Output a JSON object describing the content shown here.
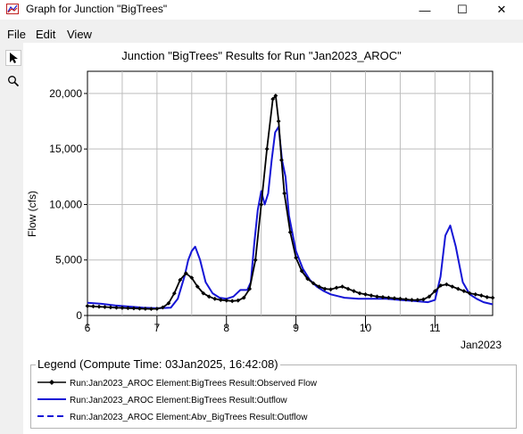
{
  "window": {
    "title": "Graph for Junction \"BigTrees\"",
    "minimize_glyph": "—",
    "maximize_glyph": "☐",
    "close_glyph": "✕"
  },
  "menu": {
    "items": [
      "File",
      "Edit",
      "View"
    ]
  },
  "tools": [
    {
      "name": "pointer-tool",
      "icon": "arrow-pointer-icon",
      "glyph": "➤"
    },
    {
      "name": "zoom-tool",
      "icon": "magnifier-icon",
      "glyph": "🔍"
    }
  ],
  "chart_data": {
    "type": "line",
    "title": "Junction \"BigTrees\" Results for Run \"Jan2023_AROC\"",
    "xlabel": "Jan2023",
    "ylabel": "Flow (cfs)",
    "xlim": [
      6,
      11.83
    ],
    "ylim": [
      0,
      22000
    ],
    "grid": true,
    "x_ticks": [
      6,
      7,
      8,
      9,
      10,
      11
    ],
    "x_tick_labels": [
      "6",
      "7",
      "8",
      "9",
      "10",
      "11"
    ],
    "y_ticks": [
      0,
      5000,
      10000,
      15000,
      20000
    ],
    "y_tick_labels": [
      "0",
      "5,000",
      "10,000",
      "15,000",
      "20,000"
    ],
    "series": [
      {
        "name": "Run:Jan2023_AROC Element:BigTrees Result:Observed Flow",
        "color": "#000000",
        "markers": true,
        "x": [
          6.0,
          6.083,
          6.167,
          6.25,
          6.333,
          6.417,
          6.5,
          6.583,
          6.667,
          6.75,
          6.833,
          6.917,
          7.0,
          7.083,
          7.167,
          7.25,
          7.333,
          7.417,
          7.5,
          7.583,
          7.667,
          7.75,
          7.833,
          7.917,
          8.0,
          8.083,
          8.167,
          8.25,
          8.333,
          8.417,
          8.5,
          8.583,
          8.667,
          8.708,
          8.75,
          8.792,
          8.833,
          8.917,
          9.0,
          9.083,
          9.167,
          9.25,
          9.333,
          9.417,
          9.5,
          9.583,
          9.667,
          9.75,
          9.833,
          9.917,
          10.0,
          10.083,
          10.167,
          10.25,
          10.333,
          10.417,
          10.5,
          10.583,
          10.667,
          10.75,
          10.833,
          10.917,
          11.0,
          11.083,
          11.167,
          11.25,
          11.333,
          11.417,
          11.5,
          11.583,
          11.667,
          11.75,
          11.83
        ],
        "values": [
          850,
          820,
          790,
          760,
          730,
          700,
          680,
          660,
          640,
          620,
          600,
          590,
          600,
          720,
          1100,
          2000,
          3200,
          3800,
          3400,
          2600,
          2000,
          1700,
          1500,
          1400,
          1350,
          1300,
          1350,
          1600,
          2400,
          5000,
          10000,
          15000,
          19500,
          19800,
          17500,
          14000,
          11000,
          7500,
          5200,
          4000,
          3300,
          2900,
          2600,
          2400,
          2350,
          2500,
          2600,
          2400,
          2200,
          2000,
          1900,
          1800,
          1700,
          1650,
          1600,
          1550,
          1500,
          1450,
          1400,
          1400,
          1450,
          1700,
          2200,
          2700,
          2800,
          2600,
          2400,
          2200,
          2000,
          1900,
          1800,
          1650,
          1600
        ]
      },
      {
        "name": "Run:Jan2023_AROC Element:BigTrees Result:Outflow",
        "color": "#1515d6",
        "markers": false,
        "x": [
          6.0,
          6.2,
          6.4,
          6.6,
          6.8,
          7.0,
          7.2,
          7.3,
          7.4,
          7.45,
          7.5,
          7.55,
          7.62,
          7.7,
          7.8,
          7.9,
          8.0,
          8.1,
          8.2,
          8.3,
          8.35,
          8.4,
          8.45,
          8.5,
          8.55,
          8.6,
          8.65,
          8.7,
          8.75,
          8.8,
          8.85,
          8.9,
          9.0,
          9.1,
          9.2,
          9.3,
          9.4,
          9.5,
          9.7,
          9.9,
          10.1,
          10.3,
          10.5,
          10.7,
          10.9,
          11.0,
          11.08,
          11.15,
          11.22,
          11.3,
          11.4,
          11.5,
          11.6,
          11.7,
          11.83
        ],
        "values": [
          1150,
          1050,
          900,
          800,
          700,
          650,
          700,
          1500,
          3600,
          5000,
          5800,
          6200,
          5000,
          3000,
          2000,
          1600,
          1500,
          1700,
          2300,
          2300,
          3000,
          6500,
          9500,
          11200,
          10000,
          11000,
          14000,
          16500,
          17000,
          14000,
          12500,
          9000,
          5800,
          4200,
          3200,
          2600,
          2200,
          1900,
          1600,
          1500,
          1500,
          1500,
          1400,
          1300,
          1200,
          1400,
          3500,
          7200,
          8100,
          6200,
          3000,
          1900,
          1500,
          1200,
          1000
        ]
      },
      {
        "name": "Run:Jan2023_AROC Element:Abv_BigTrees Result:Outflow",
        "color": "#1515d6",
        "markers": false,
        "dashed": true,
        "x": [
          6.0,
          6.2,
          6.4,
          6.6,
          6.8,
          7.0,
          7.2,
          7.3,
          7.4,
          7.45,
          7.5,
          7.55,
          7.62,
          7.7,
          7.8,
          7.9,
          8.0,
          8.1,
          8.2,
          8.3,
          8.35,
          8.4,
          8.45,
          8.5,
          8.55,
          8.6,
          8.65,
          8.7,
          8.75,
          8.8,
          8.85,
          8.9,
          9.0,
          9.1,
          9.2,
          9.3,
          9.4,
          9.5,
          9.7,
          9.9,
          10.1,
          10.3,
          10.5,
          10.7,
          10.9,
          11.0,
          11.08,
          11.15,
          11.22,
          11.3,
          11.4,
          11.5,
          11.6,
          11.7,
          11.83
        ],
        "values": [
          1150,
          1050,
          900,
          800,
          700,
          650,
          700,
          1500,
          3600,
          5000,
          5800,
          6200,
          5000,
          3000,
          2000,
          1600,
          1500,
          1700,
          2300,
          2300,
          3000,
          6500,
          9500,
          11200,
          10000,
          11000,
          14000,
          16500,
          17000,
          14000,
          12500,
          9000,
          5800,
          4200,
          3200,
          2600,
          2200,
          1900,
          1600,
          1500,
          1500,
          1500,
          1400,
          1300,
          1200,
          1400,
          3500,
          7200,
          8100,
          6200,
          3000,
          1900,
          1500,
          1200,
          1000
        ]
      }
    ]
  },
  "legend": {
    "title": "Legend (Compute Time: 03Jan2025, 16:42:08)",
    "entries": [
      "Run:Jan2023_AROC Element:BigTrees Result:Observed Flow",
      "Run:Jan2023_AROC Element:BigTrees Result:Outflow",
      "Run:Jan2023_AROC Element:Abv_BigTrees Result:Outflow"
    ]
  }
}
